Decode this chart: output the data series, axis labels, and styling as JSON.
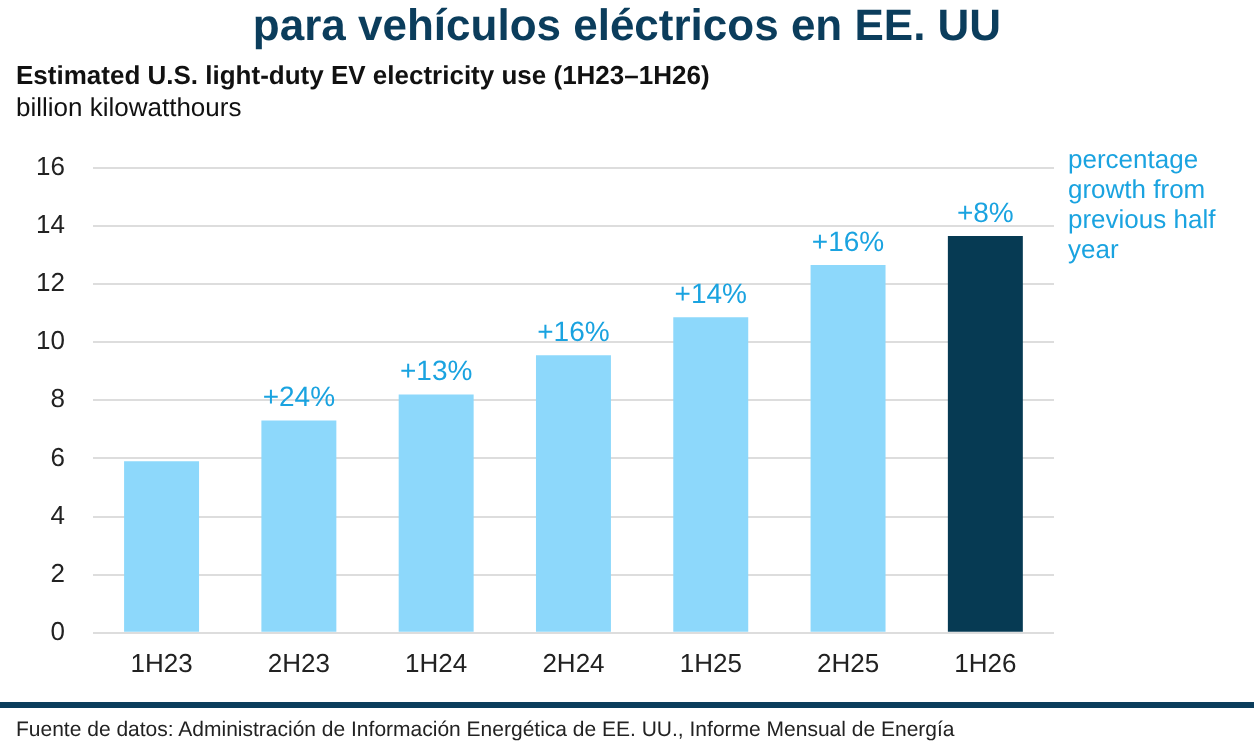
{
  "chart_data": {
    "type": "bar",
    "title": "para vehículos eléctricos en EE. UU",
    "subtitle": "Estimated U.S. light-duty EV electricity use (1H23–1H26)",
    "ylabel": "billion kilowatthours",
    "categories": [
      "1H23",
      "2H23",
      "1H24",
      "2H24",
      "1H25",
      "2H25",
      "1H26"
    ],
    "values": [
      5.9,
      7.3,
      8.2,
      9.55,
      10.85,
      12.65,
      13.65
    ],
    "colors": [
      "#8dd8fb",
      "#8dd8fb",
      "#8dd8fb",
      "#8dd8fb",
      "#8dd8fb",
      "#8dd8fb",
      "#063a53"
    ],
    "ylim": [
      0,
      16
    ],
    "yticks": [
      0,
      2,
      4,
      6,
      8,
      10,
      12,
      14,
      16
    ],
    "grid": "y",
    "annotations": [
      {
        "text": "+24%",
        "x": "2H23",
        "y": 7.3
      },
      {
        "text": "+13%",
        "x": "1H24",
        "y": 8.2
      },
      {
        "text": "+16%",
        "x": "2H24",
        "y": 9.55
      },
      {
        "text": "+14%",
        "x": "1H25",
        "y": 10.85
      },
      {
        "text": "+16%",
        "x": "2H25",
        "y": 12.65
      },
      {
        "text": "+8%",
        "x": "1H26",
        "y": 13.65
      },
      "percentage growth from previous half year",
      "Fuente de datos: Administración de Información Energética de EE. UU., Informe Mensual de Energía"
    ]
  }
}
